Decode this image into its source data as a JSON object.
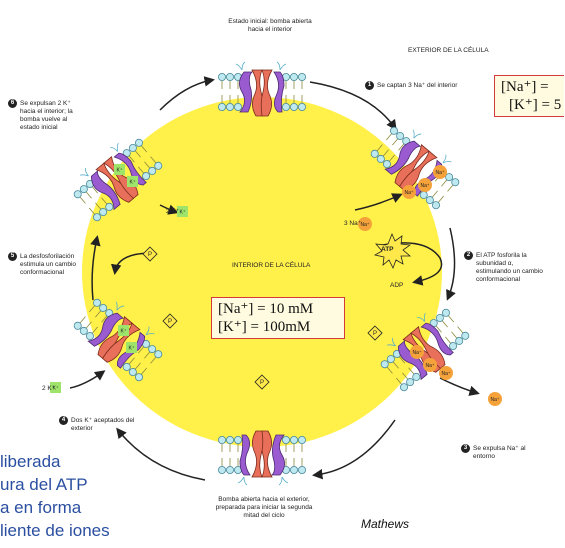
{
  "labels": {
    "top": "Estado inicial: bomba abierta hacia el interior",
    "exterior": "EXTERIOR DE LA CÉLULA",
    "interior": "INTERIOR DE LA CÉLULA",
    "bottom": "Bomba abierta hacia el exterior, preparada para iniciar la segunda mitad del ciclo",
    "atp": "ATP",
    "adp": "ADP",
    "p": "P",
    "k": "K⁺",
    "na": "Na⁺",
    "alpha": "α",
    "beta": "β",
    "three_na": "3 Na⁺",
    "two_k_left": "2 K⁺",
    "two_k_inside": "2 K⁺"
  },
  "steps": [
    {
      "num": "1",
      "text": "Se captan 3 Na⁺ del interior"
    },
    {
      "num": "2",
      "text": "El ATP fosforila la subunidad α, estimulando un cambio conformacional"
    },
    {
      "num": "3",
      "text": "Se expulsa Na⁺ al entorno"
    },
    {
      "num": "4",
      "text": "Dos K⁺ aceptados del exterior"
    },
    {
      "num": "5",
      "text": "La desfosforilación estimula un cambio conformacional"
    },
    {
      "num": "6",
      "text": "Se expulsan 2 K⁺ hacia el interior; la bomba vuelve al estado inicial"
    }
  ],
  "concentrations": {
    "inside_na": "[Na⁺] = 10 mM",
    "inside_k": "[K⁺] = 100mM",
    "outside_na": "[Na⁺] =",
    "outside_k": "[K⁺] = 5"
  },
  "side_text": [
    "liberada",
    "ura del ATP",
    "a en forma",
    "liente de iones"
  ],
  "credit": "Mathews",
  "colors": {
    "cytoplasm": "#fff04a",
    "lipid_head": "#bfe9f0",
    "subunit_alpha": "#e8705a",
    "subunit_beta": "#9a5ad0",
    "sodium": "#f5a23a",
    "potassium": "#9ee36a",
    "phosphate": "#ffe94a",
    "frame": "#d43a3a",
    "text_blue": "#2b4fa0"
  }
}
